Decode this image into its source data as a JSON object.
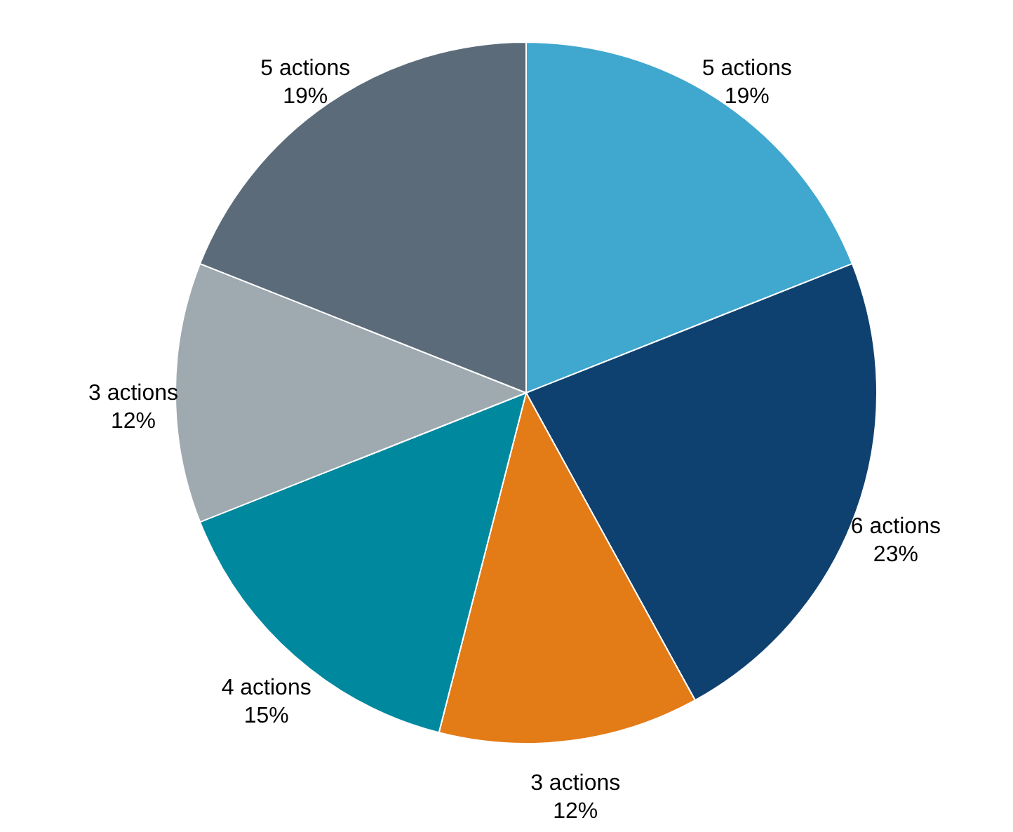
{
  "chart_data": {
    "type": "pie",
    "categories": [
      "5 actions",
      "6 actions",
      "3 actions",
      "4 actions",
      "3 actions",
      "5 actions"
    ],
    "values": [
      19,
      23,
      12,
      15,
      12,
      19
    ],
    "value_labels": [
      "19%",
      "23%",
      "12%",
      "15%",
      "12%",
      "19%"
    ],
    "colors": [
      "#40a7cf",
      "#0f4170",
      "#e37b17",
      "#00889f",
      "#9ea9b0",
      "#5c6b79"
    ]
  }
}
